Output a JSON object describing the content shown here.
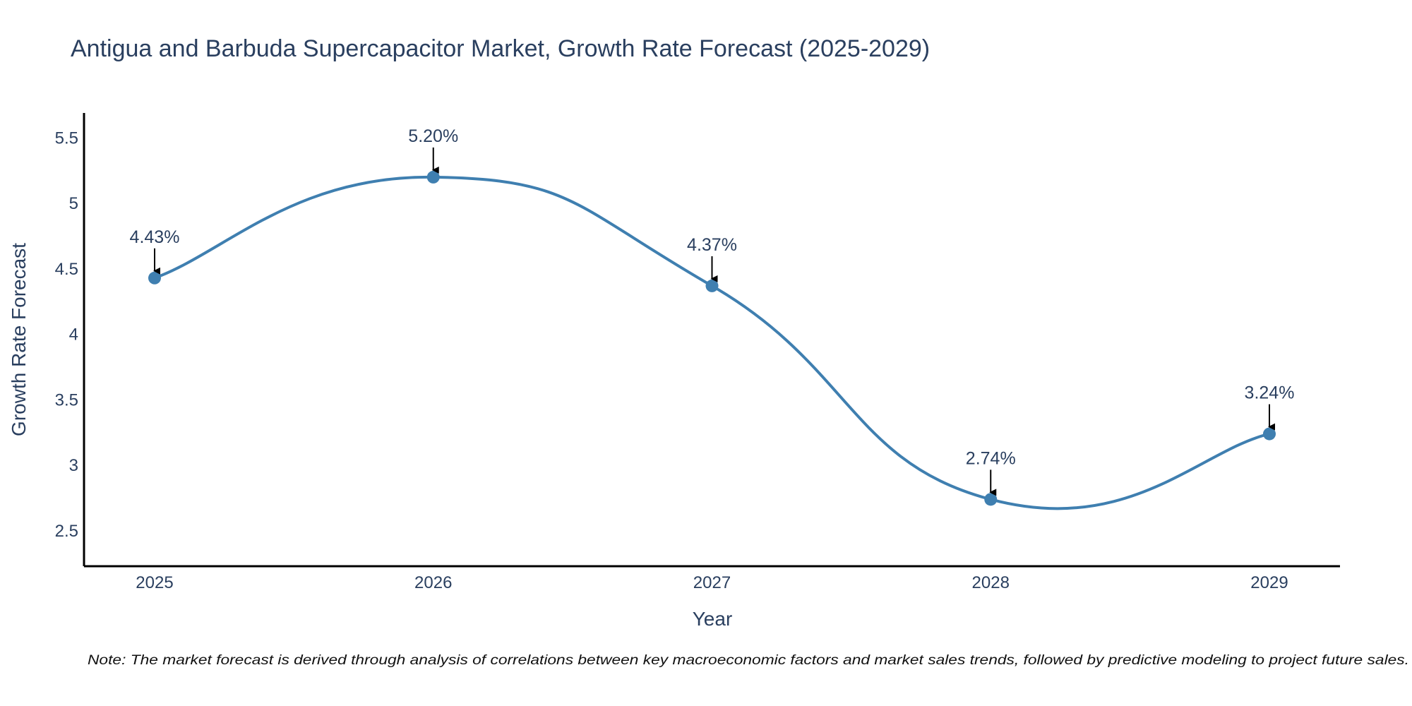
{
  "chart_data": {
    "type": "line",
    "title": "Antigua and Barbuda Supercapacitor Market, Growth Rate Forecast (2025-2029)",
    "xlabel": "Year",
    "ylabel": "Growth Rate Forecast",
    "categories": [
      "2025",
      "2026",
      "2027",
      "2028",
      "2029"
    ],
    "series": [
      {
        "name": "Growth Rate Forecast",
        "values": [
          4.43,
          5.2,
          4.37,
          2.74,
          3.24
        ],
        "labels": [
          "4.43%",
          "5.20%",
          "4.37%",
          "2.74%",
          "3.24%"
        ],
        "color": "#3f7fb0"
      }
    ],
    "yticks": [
      2.5,
      3,
      3.5,
      4,
      4.5,
      5,
      5.5
    ],
    "ytick_labels": [
      "2.5",
      "3",
      "3.5",
      "4",
      "4.5",
      "5",
      "5.5"
    ],
    "ylim": [
      2.23,
      5.69
    ],
    "grid": false,
    "line_shape": "spline",
    "note": "Note: The market forecast is derived through analysis of correlations between key macroeconomic factors and market sales trends, followed by predictive modeling to project future sales."
  },
  "colors": {
    "line": "#3f7fb0",
    "axis": "#000000",
    "text": "#2a3f5f",
    "arrow": "#000000"
  }
}
